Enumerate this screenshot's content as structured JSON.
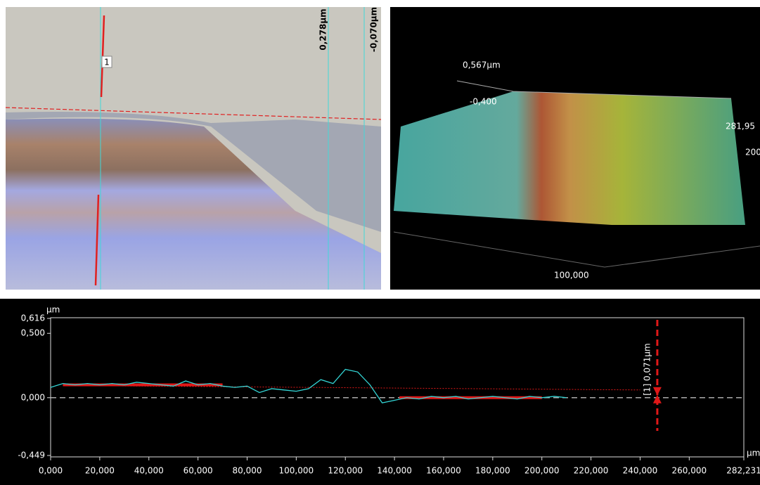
{
  "microscope_image": {
    "profile_label": "1",
    "max_label": "0,278µm",
    "min_label": "-0,070µm"
  },
  "view_3d": {
    "z_max": "0,567µm",
    "z_min": "-0,400",
    "y_label_1": "281,95",
    "y_label_2": "200",
    "x_label": "100,000"
  },
  "chart_data": {
    "type": "line",
    "y_unit": "µm",
    "x_unit": "µm",
    "x": [
      0,
      5,
      10,
      15,
      20,
      25,
      30,
      35,
      40,
      45,
      50,
      55,
      60,
      65,
      70,
      75,
      80,
      85,
      90,
      95,
      100,
      105,
      110,
      115,
      120,
      125,
      130,
      135,
      140,
      145,
      150,
      155,
      160,
      165,
      170,
      175,
      180,
      185,
      190,
      195,
      200,
      205,
      210
    ],
    "values": [
      0.08,
      0.11,
      0.1,
      0.11,
      0.1,
      0.11,
      0.1,
      0.12,
      0.11,
      0.1,
      0.09,
      0.13,
      0.1,
      0.11,
      0.09,
      0.08,
      0.09,
      0.04,
      0.07,
      0.06,
      0.05,
      0.07,
      0.14,
      0.11,
      0.22,
      0.2,
      0.1,
      -0.04,
      -0.02,
      0.0,
      -0.01,
      0.01,
      0.0,
      0.01,
      -0.01,
      0.0,
      0.01,
      0.0,
      -0.01,
      0.01,
      0.0,
      0.01,
      0.0
    ],
    "color": "#33d6d6",
    "fit_segments": [
      {
        "x": [
          5,
          70
        ],
        "values": [
          0.1,
          0.1
        ]
      },
      {
        "x": [
          142,
          200
        ],
        "values": [
          0,
          0
        ]
      }
    ],
    "fit_line": {
      "x": [
        5,
        240
      ],
      "values": [
        0.095,
        0.06
      ]
    },
    "fit_color": "#e01818",
    "measurement": {
      "label": "[1] 0,071µm",
      "x": 247,
      "value": 0.071
    },
    "xlim": [
      0,
      282.231
    ],
    "ylim": [
      -0.449,
      0.616
    ],
    "yticks": [
      {
        "value": -0.449,
        "label": "-0,449"
      },
      {
        "value": 0,
        "label": "0,000"
      },
      {
        "value": 0.5,
        "label": "0,500"
      },
      {
        "value": 0.616,
        "label": "0,616"
      }
    ],
    "xticks": [
      {
        "value": 0,
        "label": "0,000"
      },
      {
        "value": 20,
        "label": "20,000"
      },
      {
        "value": 40,
        "label": "40,000"
      },
      {
        "value": 60,
        "label": "60,000"
      },
      {
        "value": 80,
        "label": "80,000"
      },
      {
        "value": 100,
        "label": "100,000"
      },
      {
        "value": 120,
        "label": "120,000"
      },
      {
        "value": 140,
        "label": "140,000"
      },
      {
        "value": 160,
        "label": "160,000"
      },
      {
        "value": 180,
        "label": "180,000"
      },
      {
        "value": 200,
        "label": "200,000"
      },
      {
        "value": 220,
        "label": "220,000"
      },
      {
        "value": 240,
        "label": "240,000"
      },
      {
        "value": 260,
        "label": "260,000"
      },
      {
        "value": 282.231,
        "label": "282,231"
      }
    ]
  }
}
